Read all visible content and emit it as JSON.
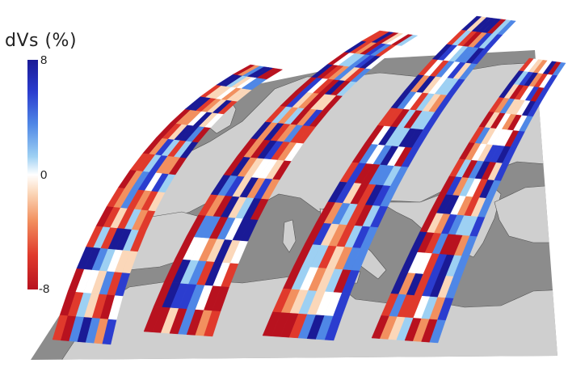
{
  "colorbar": {
    "title": "dVs (%)",
    "max_label": "8",
    "zero_label": "0",
    "min_label": "-8",
    "colors": [
      "#1a1a96",
      "#2b3dcf",
      "#4f87e6",
      "#9dd0f3",
      "#ffffff",
      "#fbd7b9",
      "#f2905f",
      "#e03a2c",
      "#b8121f"
    ]
  },
  "map": {
    "ocean_color": "#8c8c8c",
    "land_color": "#cfcfcf"
  }
}
